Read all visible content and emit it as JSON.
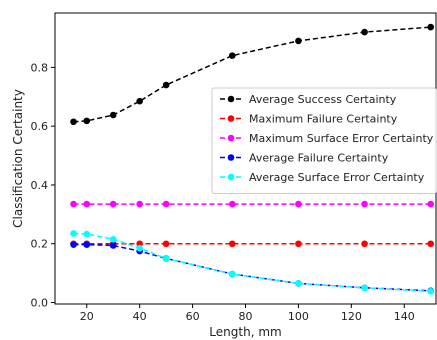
{
  "chart_data": {
    "type": "line",
    "xlabel": "Length, mm",
    "ylabel": "Classification Certainty",
    "xlim": [
      8,
      152
    ],
    "ylim": [
      -0.005,
      0.985
    ],
    "xticks": [
      20,
      40,
      60,
      80,
      100,
      120,
      140
    ],
    "yticks": [
      0.0,
      0.2,
      0.4,
      0.6,
      0.8
    ],
    "ytick_labels": [
      "0.0",
      "0.2",
      "0.4",
      "0.6",
      "0.8"
    ],
    "grid": false,
    "legend_position": "center-right",
    "series": [
      {
        "name": "Average Success Certainty",
        "color": "#000000",
        "x": [
          15,
          20,
          30,
          40,
          50,
          75,
          100,
          125,
          150
        ],
        "y": [
          0.615,
          0.618,
          0.638,
          0.685,
          0.74,
          0.84,
          0.89,
          0.92,
          0.937
        ]
      },
      {
        "name": "Maximum Failure Certainty",
        "color": "#ff0000",
        "x": [
          15,
          20,
          30,
          40,
          50,
          75,
          100,
          125,
          150
        ],
        "y": [
          0.2,
          0.2,
          0.2,
          0.2,
          0.2,
          0.2,
          0.2,
          0.2,
          0.2
        ]
      },
      {
        "name": "Maximum Surface Error Certainty",
        "color": "#ff00ff",
        "x": [
          15,
          20,
          30,
          40,
          50,
          75,
          100,
          125,
          150
        ],
        "y": [
          0.335,
          0.335,
          0.335,
          0.335,
          0.335,
          0.335,
          0.335,
          0.335,
          0.335
        ]
      },
      {
        "name": "Average Failure Certainty",
        "color": "#0000ff",
        "x": [
          15,
          20,
          30,
          40,
          50,
          75,
          100,
          125,
          150
        ],
        "y": [
          0.197,
          0.197,
          0.194,
          0.175,
          0.15,
          0.097,
          0.065,
          0.05,
          0.04
        ]
      },
      {
        "name": "Average Surface Error Certainty",
        "color": "#00ffff",
        "x": [
          15,
          20,
          30,
          40,
          50,
          75,
          100,
          125,
          150
        ],
        "y": [
          0.235,
          0.233,
          0.215,
          0.185,
          0.15,
          0.097,
          0.065,
          0.05,
          0.038
        ]
      }
    ]
  }
}
